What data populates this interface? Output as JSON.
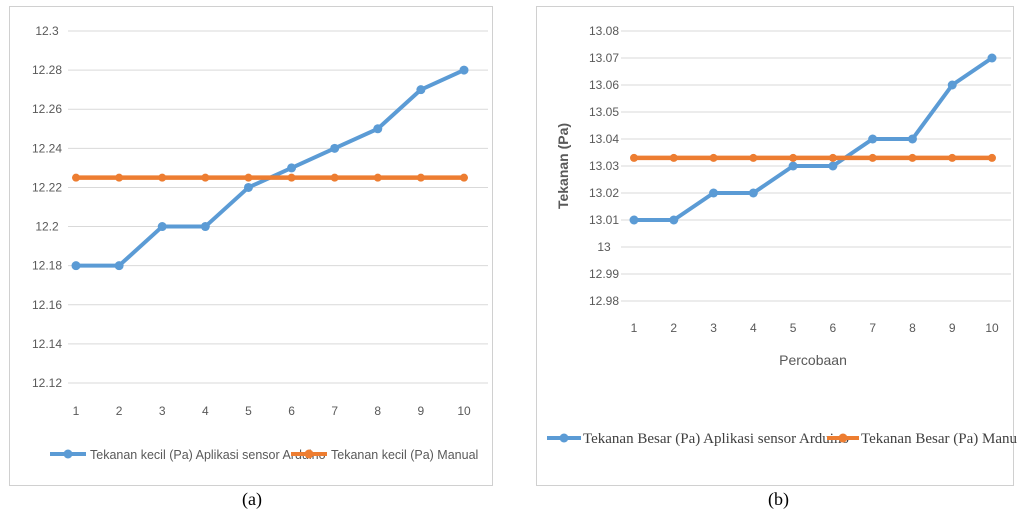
{
  "chart_data": [
    {
      "type": "line",
      "categories": [
        "1",
        "2",
        "3",
        "4",
        "5",
        "6",
        "7",
        "8",
        "9",
        "10"
      ],
      "ylim": [
        12.12,
        12.3
      ],
      "ytick_labels": [
        "12.12",
        "12.14",
        "12.16",
        "12.18",
        "12.2",
        "12.22",
        "12.24",
        "12.26",
        "12.28",
        "12.3"
      ],
      "ytick_values": [
        12.12,
        12.14,
        12.16,
        12.18,
        12.2,
        12.22,
        12.24,
        12.26,
        12.28,
        12.3
      ],
      "xlabel": "",
      "ylabel": "",
      "grid": true,
      "legend": "bottom",
      "series": [
        {
          "name": "Tekanan kecil (Pa) Aplikasi sensor Arduino",
          "color": "#5b9bd5",
          "values": [
            12.18,
            12.18,
            12.2,
            12.2,
            12.22,
            12.23,
            12.24,
            12.25,
            12.27,
            12.28
          ]
        },
        {
          "name": "Tekanan kecil (Pa) Manual",
          "color": "#ed7d31",
          "values": [
            12.225,
            12.225,
            12.225,
            12.225,
            12.225,
            12.225,
            12.225,
            12.225,
            12.225,
            12.225
          ]
        }
      ]
    },
    {
      "type": "line",
      "categories": [
        "1",
        "2",
        "3",
        "4",
        "5",
        "6",
        "7",
        "8",
        "9",
        "10"
      ],
      "ylim": [
        12.98,
        13.08
      ],
      "ytick_labels": [
        "12.98",
        "12.99",
        "13",
        "13.01",
        "13.02",
        "13.03",
        "13.04",
        "13.05",
        "13.06",
        "13.07",
        "13.08"
      ],
      "ytick_values": [
        12.98,
        12.99,
        13.0,
        13.01,
        13.02,
        13.03,
        13.04,
        13.05,
        13.06,
        13.07,
        13.08
      ],
      "xlabel": "Percobaan",
      "ylabel": "Tekanan (Pa)",
      "grid": true,
      "legend": "bottom",
      "series": [
        {
          "name": "Tekanan Besar (Pa) Aplikasi sensor Arduino",
          "color": "#5b9bd5",
          "values": [
            13.01,
            13.01,
            13.02,
            13.02,
            13.03,
            13.03,
            13.04,
            13.04,
            13.06,
            13.07
          ]
        },
        {
          "name": "Tekanan Besar (Pa) Manual",
          "color": "#ed7d31",
          "values": [
            13.033,
            13.033,
            13.033,
            13.033,
            13.033,
            13.033,
            13.033,
            13.033,
            13.033,
            13.033
          ]
        }
      ]
    }
  ],
  "captions": {
    "a": "(a)",
    "b": "(b)"
  }
}
